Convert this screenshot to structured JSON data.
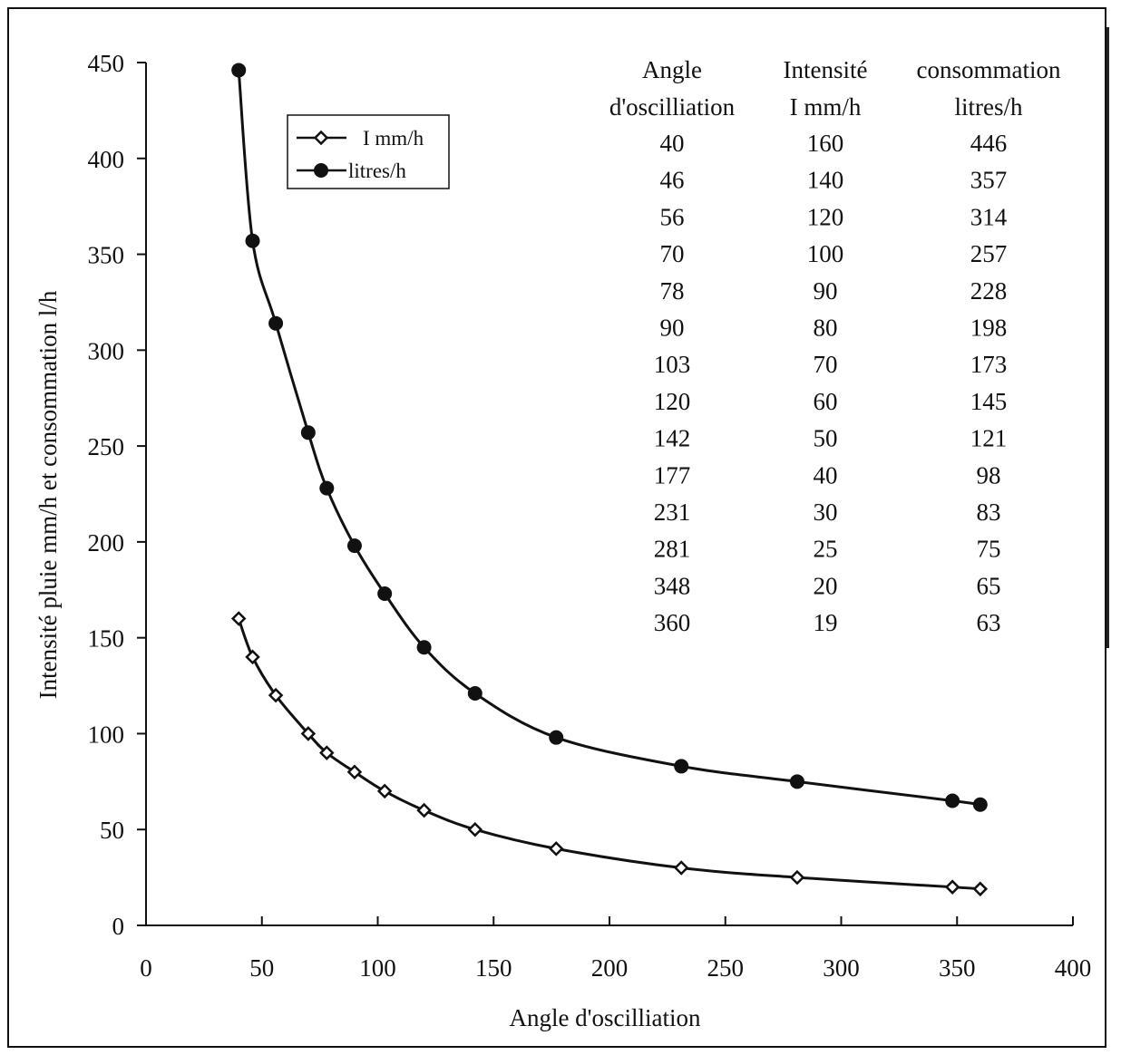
{
  "chart_data": {
    "type": "line",
    "xlabel": "Angle d'oscilliation",
    "ylabel": "Intensité pluie mm/h  et  consommation l/h",
    "xlim": [
      0,
      400
    ],
    "ylim": [
      0,
      450
    ],
    "x_ticks": [
      "0",
      "50",
      "100",
      "150",
      "200",
      "250",
      "300",
      "350",
      "400"
    ],
    "y_ticks": [
      "0",
      "50",
      "100",
      "150",
      "200",
      "250",
      "300",
      "350",
      "400",
      "450"
    ],
    "grid": false,
    "legend_position": "top-left",
    "x": [
      40,
      46,
      56,
      70,
      78,
      90,
      103,
      120,
      142,
      177,
      231,
      281,
      348,
      360
    ],
    "series": [
      {
        "name": "I  mm/h",
        "marker": "open-diamond",
        "values": [
          160,
          140,
          120,
          100,
          90,
          80,
          70,
          60,
          50,
          40,
          30,
          25,
          20,
          19
        ]
      },
      {
        "name": "litres/h",
        "marker": "filled-circle",
        "values": [
          446,
          357,
          314,
          257,
          228,
          198,
          173,
          145,
          121,
          98,
          83,
          75,
          65,
          63
        ]
      }
    ],
    "table": {
      "headers": [
        [
          "Angle",
          "d'oscilliation"
        ],
        [
          "Intensité",
          "I  mm/h"
        ],
        [
          "consommation",
          "litres/h"
        ]
      ],
      "rows": [
        [
          "40",
          "160",
          "446"
        ],
        [
          "46",
          "140",
          "357"
        ],
        [
          "56",
          "120",
          "314"
        ],
        [
          "70",
          "100",
          "257"
        ],
        [
          "78",
          "90",
          "228"
        ],
        [
          "90",
          "80",
          "198"
        ],
        [
          "103",
          "70",
          "173"
        ],
        [
          "120",
          "60",
          "145"
        ],
        [
          "142",
          "50",
          "121"
        ],
        [
          "177",
          "40",
          "98"
        ],
        [
          "231",
          "30",
          "83"
        ],
        [
          "281",
          "25",
          "75"
        ],
        [
          "348",
          "20",
          "65"
        ],
        [
          "360",
          "19",
          "63"
        ]
      ]
    },
    "colors": {
      "ink": "#111111",
      "background": "#ffffff"
    }
  }
}
